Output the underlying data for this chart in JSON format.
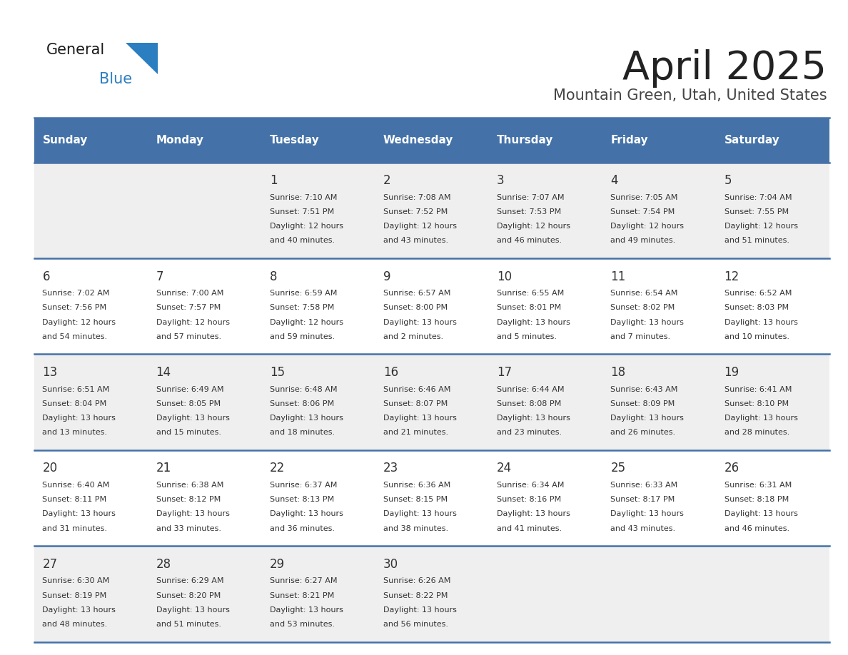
{
  "title": "April 2025",
  "subtitle": "Mountain Green, Utah, United States",
  "days_of_week": [
    "Sunday",
    "Monday",
    "Tuesday",
    "Wednesday",
    "Thursday",
    "Friday",
    "Saturday"
  ],
  "header_bg": "#4472a8",
  "header_text": "#ffffff",
  "row_bg_odd": "#efefef",
  "row_bg_even": "#ffffff",
  "cell_text": "#333333",
  "day_num_color": "#333333",
  "border_color": "#4472a8",
  "title_color": "#222222",
  "subtitle_color": "#444444",
  "logo_text_color": "#1a1a1a",
  "logo_blue_color": "#2b7fc1",
  "logo_triangle_color": "#2b7fc1",
  "weeks": [
    [
      {
        "day": null,
        "sunrise": null,
        "sunset": null,
        "daylight_line1": null,
        "daylight_line2": null
      },
      {
        "day": null,
        "sunrise": null,
        "sunset": null,
        "daylight_line1": null,
        "daylight_line2": null
      },
      {
        "day": "1",
        "sunrise": "Sunrise: 7:10 AM",
        "sunset": "Sunset: 7:51 PM",
        "daylight_line1": "Daylight: 12 hours",
        "daylight_line2": "and 40 minutes."
      },
      {
        "day": "2",
        "sunrise": "Sunrise: 7:08 AM",
        "sunset": "Sunset: 7:52 PM",
        "daylight_line1": "Daylight: 12 hours",
        "daylight_line2": "and 43 minutes."
      },
      {
        "day": "3",
        "sunrise": "Sunrise: 7:07 AM",
        "sunset": "Sunset: 7:53 PM",
        "daylight_line1": "Daylight: 12 hours",
        "daylight_line2": "and 46 minutes."
      },
      {
        "day": "4",
        "sunrise": "Sunrise: 7:05 AM",
        "sunset": "Sunset: 7:54 PM",
        "daylight_line1": "Daylight: 12 hours",
        "daylight_line2": "and 49 minutes."
      },
      {
        "day": "5",
        "sunrise": "Sunrise: 7:04 AM",
        "sunset": "Sunset: 7:55 PM",
        "daylight_line1": "Daylight: 12 hours",
        "daylight_line2": "and 51 minutes."
      }
    ],
    [
      {
        "day": "6",
        "sunrise": "Sunrise: 7:02 AM",
        "sunset": "Sunset: 7:56 PM",
        "daylight_line1": "Daylight: 12 hours",
        "daylight_line2": "and 54 minutes."
      },
      {
        "day": "7",
        "sunrise": "Sunrise: 7:00 AM",
        "sunset": "Sunset: 7:57 PM",
        "daylight_line1": "Daylight: 12 hours",
        "daylight_line2": "and 57 minutes."
      },
      {
        "day": "8",
        "sunrise": "Sunrise: 6:59 AM",
        "sunset": "Sunset: 7:58 PM",
        "daylight_line1": "Daylight: 12 hours",
        "daylight_line2": "and 59 minutes."
      },
      {
        "day": "9",
        "sunrise": "Sunrise: 6:57 AM",
        "sunset": "Sunset: 8:00 PM",
        "daylight_line1": "Daylight: 13 hours",
        "daylight_line2": "and 2 minutes."
      },
      {
        "day": "10",
        "sunrise": "Sunrise: 6:55 AM",
        "sunset": "Sunset: 8:01 PM",
        "daylight_line1": "Daylight: 13 hours",
        "daylight_line2": "and 5 minutes."
      },
      {
        "day": "11",
        "sunrise": "Sunrise: 6:54 AM",
        "sunset": "Sunset: 8:02 PM",
        "daylight_line1": "Daylight: 13 hours",
        "daylight_line2": "and 7 minutes."
      },
      {
        "day": "12",
        "sunrise": "Sunrise: 6:52 AM",
        "sunset": "Sunset: 8:03 PM",
        "daylight_line1": "Daylight: 13 hours",
        "daylight_line2": "and 10 minutes."
      }
    ],
    [
      {
        "day": "13",
        "sunrise": "Sunrise: 6:51 AM",
        "sunset": "Sunset: 8:04 PM",
        "daylight_line1": "Daylight: 13 hours",
        "daylight_line2": "and 13 minutes."
      },
      {
        "day": "14",
        "sunrise": "Sunrise: 6:49 AM",
        "sunset": "Sunset: 8:05 PM",
        "daylight_line1": "Daylight: 13 hours",
        "daylight_line2": "and 15 minutes."
      },
      {
        "day": "15",
        "sunrise": "Sunrise: 6:48 AM",
        "sunset": "Sunset: 8:06 PM",
        "daylight_line1": "Daylight: 13 hours",
        "daylight_line2": "and 18 minutes."
      },
      {
        "day": "16",
        "sunrise": "Sunrise: 6:46 AM",
        "sunset": "Sunset: 8:07 PM",
        "daylight_line1": "Daylight: 13 hours",
        "daylight_line2": "and 21 minutes."
      },
      {
        "day": "17",
        "sunrise": "Sunrise: 6:44 AM",
        "sunset": "Sunset: 8:08 PM",
        "daylight_line1": "Daylight: 13 hours",
        "daylight_line2": "and 23 minutes."
      },
      {
        "day": "18",
        "sunrise": "Sunrise: 6:43 AM",
        "sunset": "Sunset: 8:09 PM",
        "daylight_line1": "Daylight: 13 hours",
        "daylight_line2": "and 26 minutes."
      },
      {
        "day": "19",
        "sunrise": "Sunrise: 6:41 AM",
        "sunset": "Sunset: 8:10 PM",
        "daylight_line1": "Daylight: 13 hours",
        "daylight_line2": "and 28 minutes."
      }
    ],
    [
      {
        "day": "20",
        "sunrise": "Sunrise: 6:40 AM",
        "sunset": "Sunset: 8:11 PM",
        "daylight_line1": "Daylight: 13 hours",
        "daylight_line2": "and 31 minutes."
      },
      {
        "day": "21",
        "sunrise": "Sunrise: 6:38 AM",
        "sunset": "Sunset: 8:12 PM",
        "daylight_line1": "Daylight: 13 hours",
        "daylight_line2": "and 33 minutes."
      },
      {
        "day": "22",
        "sunrise": "Sunrise: 6:37 AM",
        "sunset": "Sunset: 8:13 PM",
        "daylight_line1": "Daylight: 13 hours",
        "daylight_line2": "and 36 minutes."
      },
      {
        "day": "23",
        "sunrise": "Sunrise: 6:36 AM",
        "sunset": "Sunset: 8:15 PM",
        "daylight_line1": "Daylight: 13 hours",
        "daylight_line2": "and 38 minutes."
      },
      {
        "day": "24",
        "sunrise": "Sunrise: 6:34 AM",
        "sunset": "Sunset: 8:16 PM",
        "daylight_line1": "Daylight: 13 hours",
        "daylight_line2": "and 41 minutes."
      },
      {
        "day": "25",
        "sunrise": "Sunrise: 6:33 AM",
        "sunset": "Sunset: 8:17 PM",
        "daylight_line1": "Daylight: 13 hours",
        "daylight_line2": "and 43 minutes."
      },
      {
        "day": "26",
        "sunrise": "Sunrise: 6:31 AM",
        "sunset": "Sunset: 8:18 PM",
        "daylight_line1": "Daylight: 13 hours",
        "daylight_line2": "and 46 minutes."
      }
    ],
    [
      {
        "day": "27",
        "sunrise": "Sunrise: 6:30 AM",
        "sunset": "Sunset: 8:19 PM",
        "daylight_line1": "Daylight: 13 hours",
        "daylight_line2": "and 48 minutes."
      },
      {
        "day": "28",
        "sunrise": "Sunrise: 6:29 AM",
        "sunset": "Sunset: 8:20 PM",
        "daylight_line1": "Daylight: 13 hours",
        "daylight_line2": "and 51 minutes."
      },
      {
        "day": "29",
        "sunrise": "Sunrise: 6:27 AM",
        "sunset": "Sunset: 8:21 PM",
        "daylight_line1": "Daylight: 13 hours",
        "daylight_line2": "and 53 minutes."
      },
      {
        "day": "30",
        "sunrise": "Sunrise: 6:26 AM",
        "sunset": "Sunset: 8:22 PM",
        "daylight_line1": "Daylight: 13 hours",
        "daylight_line2": "and 56 minutes."
      },
      {
        "day": null,
        "sunrise": null,
        "sunset": null,
        "daylight_line1": null,
        "daylight_line2": null
      },
      {
        "day": null,
        "sunrise": null,
        "sunset": null,
        "daylight_line1": null,
        "daylight_line2": null
      },
      {
        "day": null,
        "sunrise": null,
        "sunset": null,
        "daylight_line1": null,
        "daylight_line2": null
      }
    ]
  ]
}
